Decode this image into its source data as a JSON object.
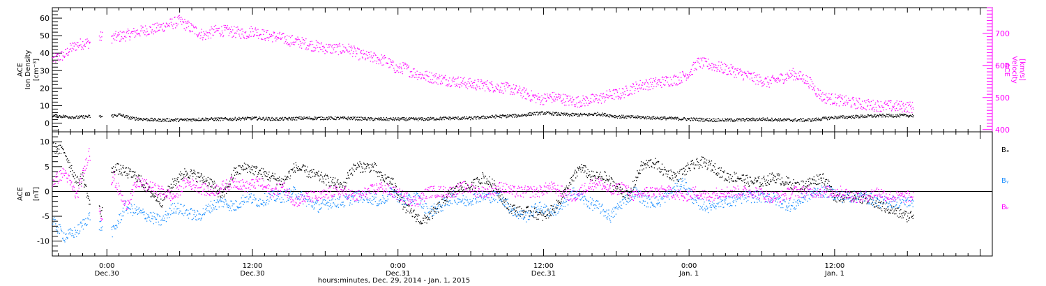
{
  "x_axis": {
    "tick_labels": [
      {
        "time": "0:00",
        "date": "Dec.30",
        "hour": 24
      },
      {
        "time": "12:00",
        "date": "Dec.30",
        "hour": 36
      },
      {
        "time": "0:00",
        "date": "Dec.31",
        "hour": 48
      },
      {
        "time": "12:00",
        "date": "Dec.31",
        "hour": 60
      },
      {
        "time": "0:00",
        "date": "Jan. 1",
        "hour": 72
      },
      {
        "time": "12:00",
        "date": "Jan. 1",
        "hour": 84
      }
    ],
    "title": "hours:minutes, Dec. 29, 2014 - Jan.  1, 2015"
  },
  "colors": {
    "black": "#000000",
    "magenta": "#ff00ff",
    "blue": "#1e90ff"
  },
  "chart_data": [
    {
      "type": "scatter",
      "panel": "top",
      "x_unit": "hours since Dec. 29, 2014 00:00",
      "xlim": [
        19.5,
        97
      ],
      "left_axis": {
        "label_lines": [
          "ACE",
          "Ion Density",
          "[cm⁻³]"
        ],
        "ylim": [
          -5,
          66
        ],
        "ticks": [
          0,
          10,
          20,
          30,
          40,
          50,
          60
        ]
      },
      "right_axis": {
        "label_lines": [
          "ACE",
          "Velocity",
          "[km/s]"
        ],
        "ylim": [
          393,
          780
        ],
        "ticks": [
          400,
          500,
          600,
          700
        ]
      },
      "series": [
        {
          "name": "Velocity",
          "axis": "right",
          "color": "magenta",
          "x": [
            19.5,
            20.5,
            21.0,
            21.5,
            22.0,
            22.5,
            23.5,
            24.5,
            25.5,
            26.5,
            27.0,
            28.0,
            29.0,
            30.0,
            31.0,
            32.0,
            33.0,
            34.0,
            34.5,
            35.5,
            36.0,
            37.0,
            38.0,
            39.0,
            40.0,
            41.0,
            42.0,
            43.0,
            44.0,
            44.6,
            45.4,
            46.0,
            47.0,
            47.5,
            48.0,
            48.5,
            49.0,
            50.0,
            51.0,
            52.0,
            53.0,
            54.0,
            55.0,
            56.0,
            57.0,
            58.0,
            59.0,
            59.8,
            60.5,
            61.3,
            62.0,
            62.6,
            63.3,
            64.0,
            64.8,
            65.5,
            66.3,
            67.0,
            68.0,
            69.0,
            70.0,
            71.0,
            72.0,
            72.7,
            73.5,
            74.5,
            75.5,
            76.5,
            77.5,
            78.5,
            79.5,
            80.5,
            81.5,
            82.0,
            82.5,
            83.0,
            84.0,
            85.0,
            86.0,
            87.0,
            88.0,
            89.0,
            90.0,
            90.5
          ],
          "y": [
            620,
            635,
            655,
            665,
            670,
            672,
            690,
            688,
            695,
            705,
            710,
            715,
            728,
            740,
            715,
            695,
            710,
            708,
            705,
            700,
            710,
            695,
            690,
            680,
            672,
            663,
            655,
            652,
            652,
            638,
            628,
            625,
            615,
            600,
            588,
            595,
            582,
            570,
            562,
            555,
            550,
            543,
            540,
            535,
            530,
            520,
            505,
            495,
            502,
            500,
            492,
            488,
            490,
            495,
            500,
            510,
            512,
            525,
            540,
            545,
            552,
            558,
            578,
            610,
            605,
            595,
            585,
            572,
            560,
            548,
            560,
            575,
            560,
            545,
            520,
            502,
            495,
            488,
            482,
            477,
            475,
            474,
            472,
            470
          ]
        },
        {
          "name": "Ion Density",
          "axis": "left",
          "color": "black",
          "x": [
            19.5,
            20.5,
            21.5,
            22.5,
            24.0,
            25.0,
            26.0,
            28.0,
            30.0,
            32.0,
            34.0,
            36.0,
            38.0,
            40.0,
            42.0,
            44.0,
            46.0,
            48.0,
            50.0,
            52.0,
            54.0,
            56.0,
            58.0,
            59.0,
            60.0,
            61.0,
            62.0,
            63.5,
            64.5,
            66.0,
            68.0,
            70.0,
            72.0,
            74.0,
            76.0,
            78.0,
            80.0,
            82.0,
            84.0,
            86.0,
            88.0,
            90.0,
            90.5
          ],
          "y": [
            4.5,
            4,
            3.5,
            4,
            4,
            5,
            3,
            2,
            2,
            2.5,
            2.5,
            3,
            2.5,
            3,
            3,
            3,
            2.5,
            2.5,
            2.5,
            3,
            3,
            4,
            4.5,
            5.5,
            6,
            5.5,
            5,
            5,
            5.5,
            4,
            3.5,
            3,
            2.5,
            2,
            2,
            2.5,
            2,
            2,
            3.5,
            4,
            4.5,
            4.5,
            4.5
          ]
        }
      ]
    },
    {
      "type": "scatter",
      "panel": "bottom",
      "x_unit": "hours since Dec. 29, 2014 00:00",
      "xlim": [
        19.5,
        97
      ],
      "left_axis": {
        "label_lines": [
          "ACE",
          "B",
          "[nT]"
        ],
        "ylim": [
          -13,
          12
        ],
        "ticks": [
          -10,
          -5,
          0,
          5,
          10
        ]
      },
      "zero_line": true,
      "legend": [
        "Bₓ",
        "Bᵧ",
        "Bₖ"
      ],
      "series": [
        {
          "name": "Bx",
          "color": "black",
          "x": [
            19.5,
            20.5,
            21.5,
            22.0,
            22.5,
            23.5,
            24.5,
            25.5,
            26.5,
            27.5,
            28.5,
            29.5,
            30.5,
            31.5,
            32.5,
            33.5,
            34.5,
            35.5,
            36.5,
            37.5,
            38.5,
            39.5,
            40.5,
            41.5,
            42.5,
            43.5,
            44.0,
            44.5,
            45.0,
            46.0,
            46.5,
            47.5,
            48.5,
            49.5,
            50.0,
            51.0,
            52.0,
            53.0,
            54.0,
            55.0,
            56.0,
            57.0,
            58.0,
            59.0,
            60.0,
            61.0,
            62.0,
            63.0,
            64.0,
            65.0,
            66.0,
            67.0,
            68.0,
            69.0,
            70.0,
            71.0,
            72.0,
            73.0,
            74.0,
            75.0,
            76.0,
            77.0,
            78.0,
            79.0,
            80.0,
            81.0,
            82.0,
            83.0,
            84.0,
            85.0,
            86.0,
            87.0,
            88.0,
            89.0,
            90.0,
            90.5
          ],
          "y": [
            9,
            8,
            2,
            3,
            -2,
            -4,
            5,
            4,
            3,
            0,
            -2,
            2,
            4,
            3,
            2,
            -1,
            4,
            5,
            4,
            3,
            2,
            5,
            4,
            3,
            2,
            1,
            4,
            5,
            5,
            5,
            3,
            2,
            -3,
            -5,
            -6,
            -4,
            -1,
            1,
            1,
            3,
            1,
            -3,
            -4,
            -4,
            -5,
            -3,
            1,
            5,
            3,
            3,
            1,
            -1,
            5,
            6,
            4,
            3,
            5,
            6,
            5,
            3,
            3,
            2,
            2,
            3,
            2,
            1,
            2,
            3,
            -1,
            -1,
            -1,
            -2,
            -3,
            -4,
            -5,
            -4.5
          ]
        },
        {
          "name": "By",
          "color": "blue",
          "x": [
            19.5,
            20.5,
            21.5,
            22.5,
            23.5,
            24.5,
            25.5,
            26.5,
            27.5,
            28.5,
            29.5,
            30.5,
            31.5,
            32.5,
            33.5,
            34.5,
            35.5,
            36.5,
            37.5,
            38.5,
            39.5,
            40.5,
            41.5,
            42.5,
            43.5,
            44.5,
            45.5,
            46.5,
            47.5,
            48.5,
            49.5,
            50.5,
            51.5,
            52.5,
            53.5,
            54.5,
            55.5,
            56.5,
            57.5,
            58.5,
            59.5,
            60.5,
            61.5,
            62.5,
            63.5,
            64.5,
            65.5,
            66.5,
            67.5,
            68.5,
            69.5,
            70.5,
            71.5,
            72.5,
            73.5,
            74.5,
            75.5,
            76.5,
            77.5,
            78.5,
            79.5,
            80.5,
            81.5,
            82.5,
            83.5,
            84.5,
            85.5,
            86.5,
            87.5,
            88.5,
            89.5,
            90.5
          ],
          "y": [
            -6,
            -9,
            -8,
            -5,
            -7,
            -8,
            -3,
            -4,
            -5,
            -6,
            -3,
            -4,
            -5,
            -3,
            -2,
            -3,
            -1,
            -2,
            -1,
            -1,
            0,
            -2,
            -3,
            -2,
            -2,
            -1,
            -1,
            -2,
            0,
            -2,
            -1,
            -4,
            -3,
            -1,
            -2,
            -1,
            -1,
            -1,
            -4,
            -5,
            -3,
            -4,
            -3,
            0,
            -2,
            -3,
            -5,
            -2,
            0,
            -2,
            -2,
            0,
            2,
            -2,
            -3,
            -2,
            -2,
            -1,
            -1,
            -1,
            -2,
            -3,
            -1,
            0,
            0,
            -1,
            -1,
            -1,
            -2,
            -2,
            -2,
            -2
          ]
        },
        {
          "name": "Bz",
          "color": "magenta",
          "x": [
            19.5,
            20.5,
            21.5,
            22.5,
            23.5,
            24.5,
            25.5,
            26.5,
            27.5,
            28.5,
            29.5,
            30.5,
            31.5,
            32.5,
            33.5,
            34.5,
            35.5,
            36.5,
            37.5,
            38.5,
            39.5,
            40.5,
            41.5,
            42.5,
            43.5,
            44.5,
            45.5,
            46.5,
            47.5,
            48.5,
            49.5,
            50.5,
            51.5,
            52.5,
            53.5,
            54.5,
            55.5,
            56.5,
            57.5,
            58.5,
            59.5,
            60.5,
            61.5,
            62.5,
            63.5,
            64.5,
            65.5,
            66.5,
            67.5,
            68.5,
            69.5,
            70.5,
            71.5,
            72.5,
            73.5,
            74.5,
            75.5,
            76.5,
            77.5,
            78.5,
            79.5,
            80.5,
            81.5,
            82.5,
            83.5,
            84.5,
            85.5,
            86.5,
            87.5,
            88.5,
            89.5,
            90.5
          ],
          "y": [
            2,
            4,
            -1,
            8,
            -5,
            3,
            -3,
            2,
            1,
            0,
            -1,
            2,
            1,
            0,
            1,
            2,
            1,
            2,
            0,
            1,
            -2,
            -1,
            -1,
            0,
            0,
            -1,
            0,
            1,
            0,
            -1,
            -2,
            0,
            0,
            0,
            1,
            0,
            0,
            1,
            0,
            0,
            0,
            1,
            0,
            -1,
            1,
            2,
            0,
            1,
            -1,
            0,
            0,
            0,
            -1,
            0,
            -1,
            0,
            0,
            0,
            0,
            -1,
            -1,
            0,
            0,
            0,
            0,
            0,
            -1,
            -1,
            0,
            -1,
            -1,
            -1
          ]
        }
      ]
    }
  ]
}
